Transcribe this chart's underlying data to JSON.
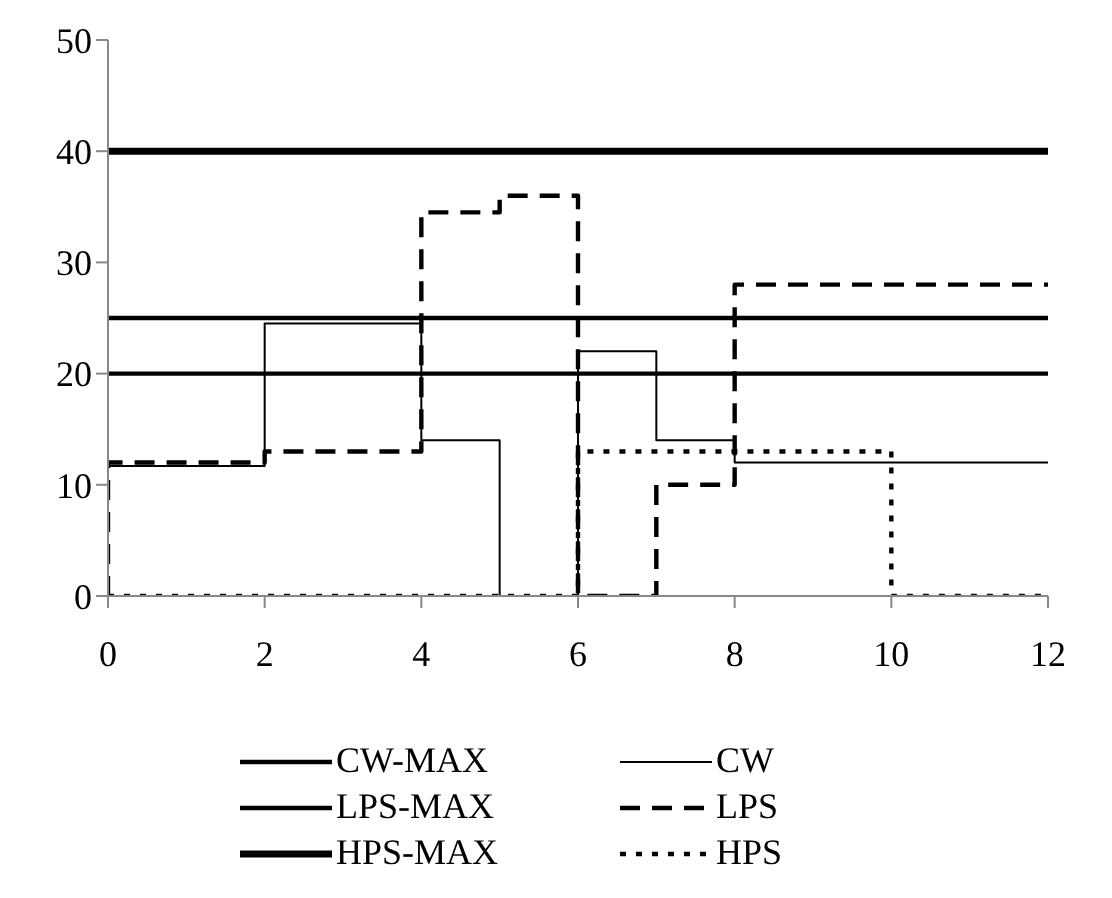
{
  "chart_data": {
    "type": "step",
    "xlim": [
      0,
      12
    ],
    "xticks": [
      0,
      2,
      4,
      6,
      8,
      10,
      12
    ],
    "ylim": [
      0,
      50
    ],
    "yticks": [
      0,
      10,
      20,
      30,
      40,
      50
    ],
    "legend": "bottom",
    "series": [
      {
        "name": "CW-MAX",
        "color": "#000000",
        "line_style": "solid",
        "x": [
          0,
          12
        ],
        "values": [
          25,
          25
        ]
      },
      {
        "name": "CW",
        "color": "#000000",
        "line_style": "solid",
        "x": [
          0,
          0,
          2,
          4,
          5,
          6,
          7,
          8,
          12
        ],
        "values": [
          0,
          11.7,
          24.5,
          14,
          0,
          22,
          14,
          12,
          12
        ]
      },
      {
        "name": "LPS-MAX",
        "color": "#000000",
        "line_style": "solid",
        "x": [
          0,
          12
        ],
        "values": [
          20,
          20
        ]
      },
      {
        "name": "LPS",
        "color": "#000000",
        "line_style": "dashed",
        "x": [
          0,
          0,
          2,
          4,
          5,
          6,
          7,
          8,
          12
        ],
        "values": [
          0,
          12,
          13,
          34.5,
          36,
          0,
          10,
          28,
          28
        ]
      },
      {
        "name": "HPS-MAX",
        "color": "#000000",
        "line_style": "solid",
        "x": [
          0,
          12
        ],
        "values": [
          40,
          40
        ]
      },
      {
        "name": "HPS",
        "color": "#000000",
        "line_style": "dotted",
        "x": [
          0,
          6,
          10,
          12
        ],
        "values": [
          0,
          13,
          0,
          0
        ]
      }
    ]
  }
}
